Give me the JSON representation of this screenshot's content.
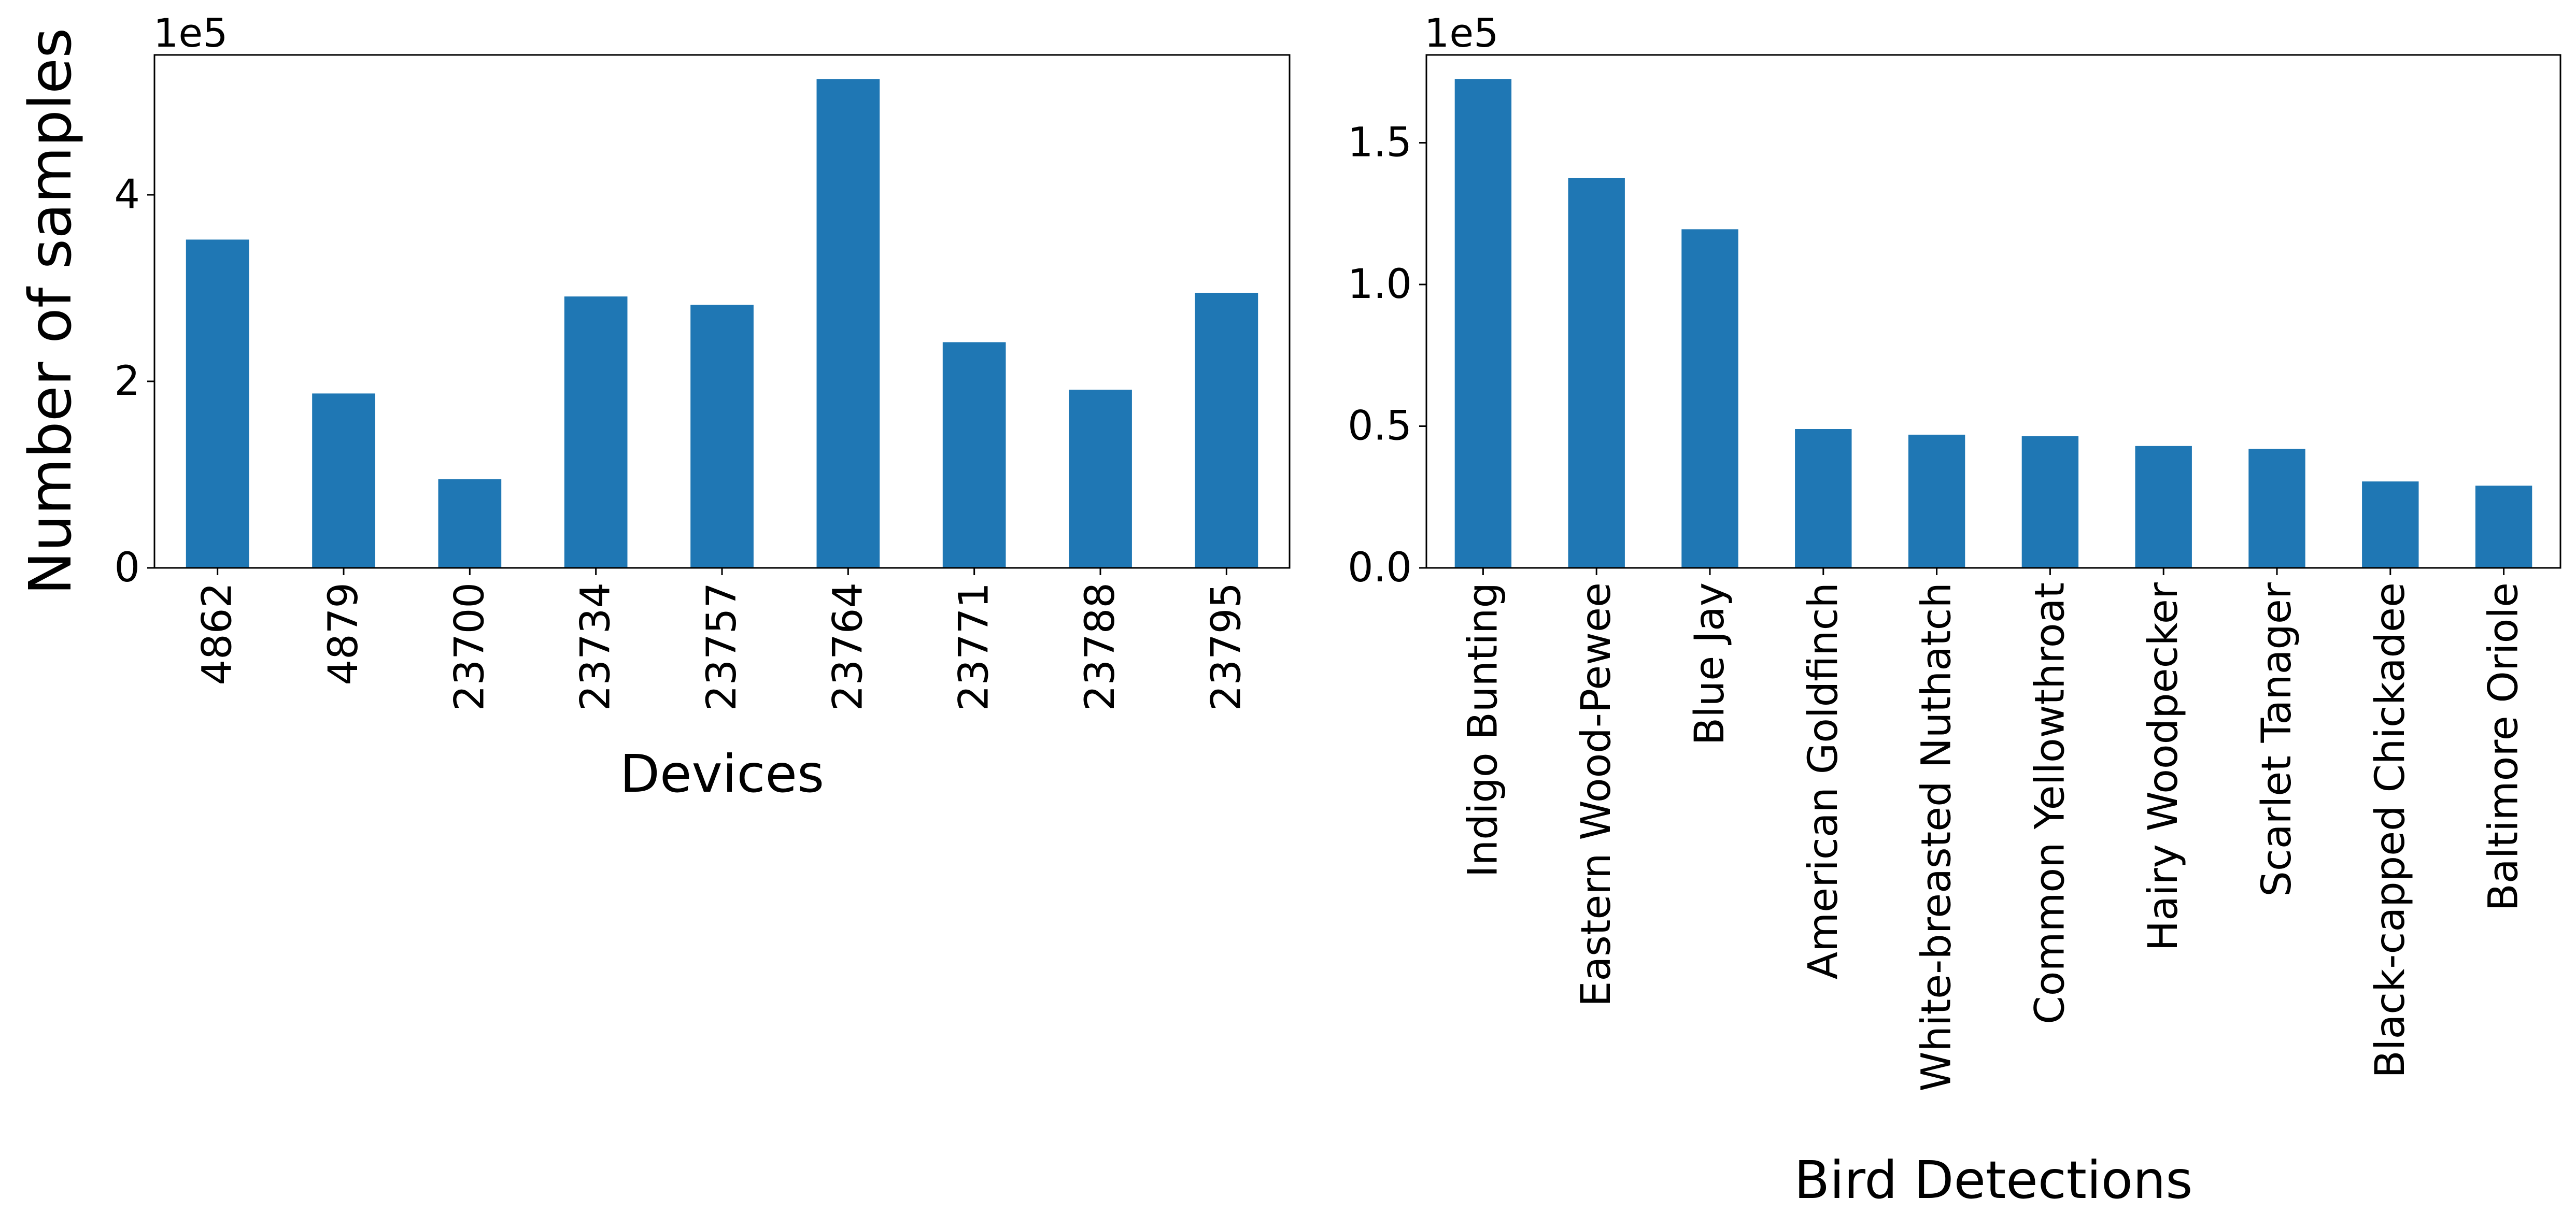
{
  "chart_data": [
    {
      "type": "bar",
      "ylabel": "Number of samples",
      "xlabel": "Devices",
      "offset_text": "1e5",
      "categories": [
        "4862",
        "4879",
        "23700",
        "23734",
        "23757",
        "23764",
        "23771",
        "23788",
        "23795"
      ],
      "values": [
        352000,
        187000,
        95000,
        291000,
        282000,
        524000,
        242000,
        191000,
        295000
      ],
      "ylim": [
        0,
        550000
      ],
      "yticks": [
        0,
        200000,
        400000
      ],
      "ytick_labels": [
        "0",
        "2",
        "4"
      ],
      "grid": false,
      "color": "#1f77b4"
    },
    {
      "type": "bar",
      "ylabel": "",
      "xlabel": "Bird Detections",
      "offset_text": "1e5",
      "categories": [
        "Indigo Bunting",
        "Eastern Wood-Pewee",
        "Blue Jay",
        "American Goldfinch",
        "White-breasted Nuthatch",
        "Common Yellowthroat",
        "Hairy Woodpecker",
        "Scarlet Tanager",
        "Black-capped Chickadee",
        "Baltimore Oriole"
      ],
      "values": [
        172500,
        137500,
        119500,
        49000,
        47000,
        46500,
        43000,
        42000,
        30500,
        29000
      ],
      "ylim": [
        0,
        181000
      ],
      "yticks": [
        0,
        50000,
        100000,
        150000
      ],
      "ytick_labels": [
        "0.0",
        "0.5",
        "1.0",
        "1.5"
      ],
      "grid": false,
      "color": "#1f77b4"
    }
  ]
}
